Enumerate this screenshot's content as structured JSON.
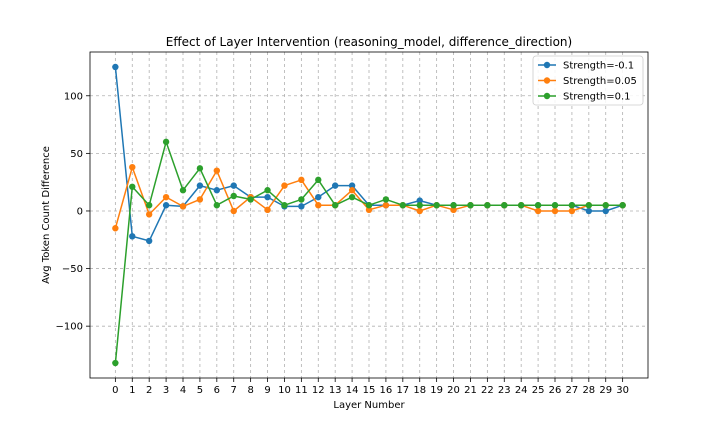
{
  "chart_data": {
    "type": "line",
    "title": "Effect of Layer Intervention (reasoning_model, difference_direction)",
    "xlabel": "Layer Number",
    "ylabel": "Avg Token Count Difference",
    "x": [
      0,
      1,
      2,
      3,
      4,
      5,
      6,
      7,
      8,
      9,
      10,
      11,
      12,
      13,
      14,
      15,
      16,
      17,
      18,
      19,
      20,
      21,
      22,
      23,
      24,
      25,
      26,
      27,
      28,
      29,
      30
    ],
    "xlim": [
      -1.5,
      31.5
    ],
    "ylim": [
      -145,
      138
    ],
    "yticks": [
      -100,
      -50,
      0,
      50,
      100
    ],
    "ytick_labels": [
      "−100",
      "−50",
      "0",
      "50",
      "100"
    ],
    "grid": true,
    "legend_position": "top-right",
    "series": [
      {
        "name": "Strength=-0.1",
        "color": "#1f77b4",
        "values": [
          125,
          -22,
          -26,
          5,
          4,
          22,
          18,
          22,
          12,
          12,
          4,
          4,
          12,
          22,
          22,
          5,
          5,
          5,
          9,
          5,
          5,
          5,
          5,
          5,
          5,
          5,
          5,
          5,
          0,
          0,
          5
        ]
      },
      {
        "name": "Strength=0.05",
        "color": "#ff7f0e",
        "values": [
          -15,
          38,
          -3,
          12,
          4,
          10,
          35,
          0,
          12,
          1,
          22,
          27,
          5,
          5,
          18,
          1,
          5,
          5,
          0,
          5,
          1,
          5,
          5,
          5,
          5,
          0,
          0,
          0,
          5,
          5,
          5
        ]
      },
      {
        "name": "Strength=0.1",
        "color": "#2ca02c",
        "values": [
          -132,
          21,
          5,
          60,
          18,
          37,
          5,
          13,
          10,
          18,
          5,
          10,
          27,
          5,
          12,
          5,
          10,
          5,
          5,
          5,
          5,
          5,
          5,
          5,
          5,
          5,
          5,
          5,
          5,
          5,
          5
        ]
      }
    ]
  }
}
